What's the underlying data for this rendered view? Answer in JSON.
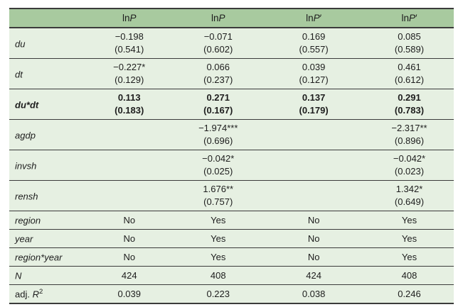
{
  "colors": {
    "header_bg": "#a8ca9f",
    "row_bg": "#e6f0e2",
    "line": "#3b3b3b",
    "text": "#1d1d1d"
  },
  "table": {
    "header": [
      {
        "pre": "ln",
        "it": "P",
        "post": ""
      },
      {
        "pre": "ln",
        "it": "P",
        "post": ""
      },
      {
        "pre": "ln",
        "it": "P",
        "post": "′"
      },
      {
        "pre": "ln",
        "it": "P",
        "post": "′"
      }
    ],
    "rows": [
      {
        "type": "coef",
        "bold": false,
        "label": {
          "pre": "",
          "it": "du",
          "sup": ""
        },
        "cells": [
          {
            "v": "−0.198",
            "se": "(0.541)"
          },
          {
            "v": "−0.071",
            "se": "(0.602)"
          },
          {
            "v": "0.169",
            "se": "(0.557)"
          },
          {
            "v": "0.085",
            "se": "(0.589)"
          }
        ]
      },
      {
        "type": "coef",
        "bold": false,
        "label": {
          "pre": "",
          "it": "dt",
          "sup": ""
        },
        "cells": [
          {
            "v": "−0.227*",
            "se": "(0.129)"
          },
          {
            "v": "0.066",
            "se": "(0.237)"
          },
          {
            "v": "0.039",
            "se": "(0.127)"
          },
          {
            "v": "0.461",
            "se": "(0.612)"
          }
        ]
      },
      {
        "type": "coef",
        "bold": true,
        "label": {
          "pre": "",
          "it": "du*dt",
          "sup": ""
        },
        "cells": [
          {
            "v": "0.113",
            "se": "(0.183)"
          },
          {
            "v": "0.271",
            "se": "(0.167)"
          },
          {
            "v": "0.137",
            "se": "(0.179)"
          },
          {
            "v": "0.291",
            "se": "(0.783)"
          }
        ]
      },
      {
        "type": "coef",
        "bold": false,
        "label": {
          "pre": "",
          "it": "agdp",
          "sup": ""
        },
        "cells": [
          {
            "v": "",
            "se": ""
          },
          {
            "v": "−1.974***",
            "se": "(0.696)"
          },
          {
            "v": "",
            "se": ""
          },
          {
            "v": "−2.317**",
            "se": "(0.896)"
          }
        ]
      },
      {
        "type": "coef",
        "bold": false,
        "label": {
          "pre": "",
          "it": "invsh",
          "sup": ""
        },
        "cells": [
          {
            "v": "",
            "se": ""
          },
          {
            "v": "−0.042*",
            "se": "(0.025)"
          },
          {
            "v": "",
            "se": ""
          },
          {
            "v": "−0.042*",
            "se": "(0.023)"
          }
        ]
      },
      {
        "type": "coef",
        "bold": false,
        "label": {
          "pre": "",
          "it": "rensh",
          "sup": ""
        },
        "cells": [
          {
            "v": "",
            "se": ""
          },
          {
            "v": "1.676**",
            "se": "(0.757)"
          },
          {
            "v": "",
            "se": ""
          },
          {
            "v": "1.342*",
            "se": "(0.649)"
          }
        ]
      },
      {
        "type": "single",
        "bold": false,
        "label": {
          "pre": "",
          "it": "region",
          "sup": ""
        },
        "cells": [
          {
            "v": "No"
          },
          {
            "v": "Yes"
          },
          {
            "v": "No"
          },
          {
            "v": "Yes"
          }
        ]
      },
      {
        "type": "single",
        "bold": false,
        "label": {
          "pre": "",
          "it": "year",
          "sup": ""
        },
        "cells": [
          {
            "v": "No"
          },
          {
            "v": "Yes"
          },
          {
            "v": "No"
          },
          {
            "v": "Yes"
          }
        ]
      },
      {
        "type": "single",
        "bold": false,
        "label": {
          "pre": "",
          "it": "region*year",
          "sup": ""
        },
        "cells": [
          {
            "v": "No"
          },
          {
            "v": "Yes"
          },
          {
            "v": "No"
          },
          {
            "v": "Yes"
          }
        ]
      },
      {
        "type": "single",
        "bold": false,
        "label": {
          "pre": "",
          "it": "N",
          "sup": ""
        },
        "cells": [
          {
            "v": "424"
          },
          {
            "v": "408"
          },
          {
            "v": "424"
          },
          {
            "v": "408"
          }
        ]
      },
      {
        "type": "single",
        "bold": false,
        "label": {
          "pre": "adj. ",
          "it": "R",
          "sup": "2"
        },
        "cells": [
          {
            "v": "0.039"
          },
          {
            "v": "0.223"
          },
          {
            "v": "0.038"
          },
          {
            "v": "0.246"
          }
        ]
      }
    ]
  }
}
